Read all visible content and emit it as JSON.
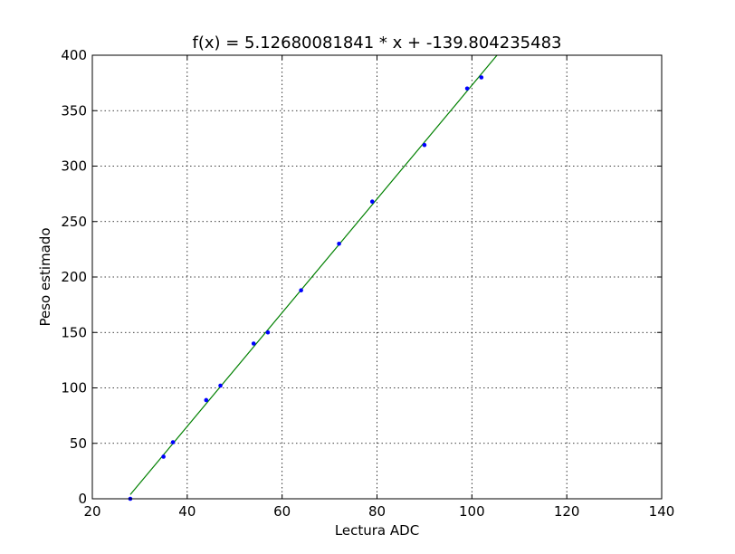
{
  "chart_data": {
    "type": "scatter",
    "title": "f(x) = 5.12680081841 * x + -139.804235483",
    "xlabel": "Lectura ADC",
    "ylabel": "Peso estimado",
    "xlim": [
      20,
      140
    ],
    "ylim": [
      0,
      400
    ],
    "xticks": [
      "20",
      "40",
      "60",
      "80",
      "100",
      "120",
      "140"
    ],
    "yticks": [
      "0",
      "50",
      "100",
      "150",
      "200",
      "250",
      "300",
      "350",
      "400"
    ],
    "grid": true,
    "legend": "none",
    "series": [
      {
        "kind": "points",
        "color": "#0000ff",
        "x": [
          28,
          35,
          37,
          44,
          47,
          54,
          57,
          64,
          72,
          79,
          90,
          99,
          102
        ],
        "y": [
          0,
          38,
          51,
          89,
          102,
          140,
          150,
          188,
          230,
          268,
          319,
          370,
          380
        ]
      },
      {
        "kind": "line",
        "color": "#008000",
        "slope": 5.12680081841,
        "intercept": -139.804235483,
        "x_start": 28
      }
    ]
  }
}
